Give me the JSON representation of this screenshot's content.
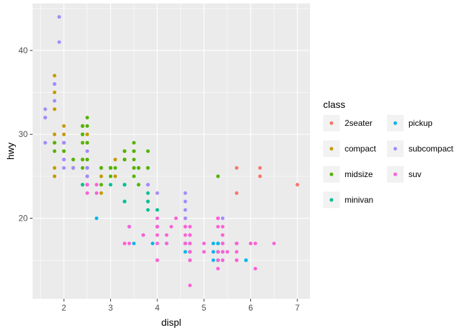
{
  "chart_data": {
    "type": "scatter",
    "xlabel": "displ",
    "ylabel": "hwy",
    "xlim": [
      1.33,
      7.27
    ],
    "ylim": [
      10.4,
      45.6
    ],
    "x_ticks": [
      2,
      3,
      4,
      5,
      6,
      7
    ],
    "y_ticks": [
      20,
      30,
      40
    ],
    "grid": true,
    "legend": {
      "title": "class",
      "placement": "right",
      "columns": 2
    },
    "series": [
      {
        "name": "2seater",
        "color": "#F8766D",
        "points": [
          [
            5.7,
            26
          ],
          [
            5.7,
            23
          ],
          [
            6.2,
            26
          ],
          [
            6.2,
            25
          ],
          [
            7.0,
            24
          ]
        ]
      },
      {
        "name": "compact",
        "color": "#C49A00",
        "points": [
          [
            1.8,
            29
          ],
          [
            1.8,
            29
          ],
          [
            2.0,
            31
          ],
          [
            2.0,
            30
          ],
          [
            2.8,
            26
          ],
          [
            2.8,
            26
          ],
          [
            3.1,
            27
          ],
          [
            1.8,
            26
          ],
          [
            1.8,
            25
          ],
          [
            2.0,
            28
          ],
          [
            2.0,
            29
          ],
          [
            2.8,
            25
          ],
          [
            3.1,
            25
          ],
          [
            1.8,
            37
          ],
          [
            1.8,
            35
          ],
          [
            1.8,
            33
          ],
          [
            1.8,
            30
          ],
          [
            2.2,
            27
          ],
          [
            2.2,
            26
          ],
          [
            2.4,
            31
          ],
          [
            2.4,
            30
          ],
          [
            3.0,
            26
          ],
          [
            3.3,
            27
          ],
          [
            2.0,
            29
          ],
          [
            2.0,
            28
          ],
          [
            2.5,
            26
          ],
          [
            2.8,
            23
          ],
          [
            2.8,
            26
          ],
          [
            2.4,
            27
          ],
          [
            2.4,
            31
          ],
          [
            2.5,
            29
          ],
          [
            2.5,
            30
          ],
          [
            2.5,
            27
          ]
        ]
      },
      {
        "name": "midsize",
        "color": "#53B400",
        "points": [
          [
            2.4,
            27
          ],
          [
            2.4,
            30
          ],
          [
            3.0,
            26
          ],
          [
            3.5,
            26
          ],
          [
            3.3,
            27
          ],
          [
            3.6,
            26
          ],
          [
            2.4,
            26
          ],
          [
            2.5,
            29
          ],
          [
            2.5,
            32
          ],
          [
            2.5,
            31
          ],
          [
            2.5,
            27
          ],
          [
            3.3,
            27
          ],
          [
            3.5,
            27
          ],
          [
            3.8,
            26
          ],
          [
            3.0,
            26
          ],
          [
            3.0,
            26
          ],
          [
            3.0,
            25
          ],
          [
            3.5,
            25
          ],
          [
            2.4,
            30
          ],
          [
            2.4,
            31
          ],
          [
            3.1,
            26
          ],
          [
            3.5,
            28
          ],
          [
            3.6,
            26
          ],
          [
            2.2,
            26
          ],
          [
            2.2,
            27
          ],
          [
            2.4,
            29
          ],
          [
            2.4,
            31
          ],
          [
            3.0,
            26
          ],
          [
            3.0,
            26
          ],
          [
            3.5,
            26
          ],
          [
            1.8,
            29
          ],
          [
            1.8,
            28
          ],
          [
            2.0,
            29
          ],
          [
            2.0,
            28
          ],
          [
            2.8,
            26
          ],
          [
            2.8,
            26
          ],
          [
            3.6,
            26
          ],
          [
            5.3,
            25
          ],
          [
            3.3,
            28
          ],
          [
            3.5,
            29
          ],
          [
            3.8,
            28
          ],
          [
            3.8,
            26
          ],
          [
            2.4,
            24
          ],
          [
            2.5,
            25
          ],
          [
            2.5,
            26
          ],
          [
            3.3,
            28
          ],
          [
            3.5,
            28
          ],
          [
            2.8,
            24
          ],
          [
            3.6,
            24
          ],
          [
            2.5,
            26
          ]
        ]
      },
      {
        "name": "minivan",
        "color": "#00C094",
        "points": [
          [
            2.4,
            24
          ],
          [
            3.0,
            24
          ],
          [
            3.3,
            22
          ],
          [
            3.3,
            22
          ],
          [
            3.3,
            24
          ],
          [
            3.3,
            24
          ],
          [
            3.3,
            24
          ],
          [
            3.8,
            22
          ],
          [
            3.8,
            21
          ],
          [
            3.8,
            22
          ],
          [
            4.0,
            21
          ],
          [
            3.8,
            23
          ]
        ]
      },
      {
        "name": "pickup",
        "color": "#00B6EB",
        "points": [
          [
            2.7,
            20
          ],
          [
            3.4,
            19
          ],
          [
            3.5,
            17
          ],
          [
            3.7,
            18
          ],
          [
            3.9,
            17
          ],
          [
            4.0,
            19
          ],
          [
            4.7,
            17
          ],
          [
            4.7,
            16
          ],
          [
            4.7,
            17
          ],
          [
            5.2,
            15
          ],
          [
            5.2,
            17
          ],
          [
            5.7,
            17
          ],
          [
            5.9,
            15
          ],
          [
            5.3,
            16
          ],
          [
            5.3,
            17
          ],
          [
            5.3,
            15
          ],
          [
            4.2,
            17
          ],
          [
            4.6,
            16
          ],
          [
            4.6,
            17
          ],
          [
            5.4,
            15
          ],
          [
            5.4,
            16
          ],
          [
            5.4,
            17
          ],
          [
            4.0,
            19
          ],
          [
            4.6,
            17
          ],
          [
            4.7,
            15
          ],
          [
            4.7,
            16
          ],
          [
            5.2,
            16
          ],
          [
            5.3,
            15
          ],
          [
            5.3,
            16
          ],
          [
            5.3,
            17
          ],
          [
            5.9,
            15
          ],
          [
            5.3,
            16
          ],
          [
            4.7,
            16
          ]
        ]
      },
      {
        "name": "subcompact",
        "color": "#A58AFF",
        "points": [
          [
            1.6,
            33
          ],
          [
            1.6,
            32
          ],
          [
            1.6,
            32
          ],
          [
            1.6,
            29
          ],
          [
            1.6,
            32
          ],
          [
            1.8,
            34
          ],
          [
            1.8,
            36
          ],
          [
            1.8,
            36
          ],
          [
            2.0,
            29
          ],
          [
            2.2,
            26
          ],
          [
            1.9,
            44
          ],
          [
            2.0,
            27
          ],
          [
            1.9,
            41
          ],
          [
            2.0,
            26
          ],
          [
            2.5,
            26
          ],
          [
            2.5,
            28
          ],
          [
            2.5,
            26
          ],
          [
            2.5,
            26
          ],
          [
            2.0,
            27
          ],
          [
            2.0,
            29
          ],
          [
            2.5,
            24
          ],
          [
            2.5,
            25
          ],
          [
            2.5,
            24
          ],
          [
            4.6,
            23
          ],
          [
            4.6,
            22
          ],
          [
            4.6,
            21
          ],
          [
            4.6,
            20
          ],
          [
            3.8,
            24
          ],
          [
            3.8,
            24
          ],
          [
            4.0,
            23
          ],
          [
            5.4,
            20
          ],
          [
            4.6,
            20
          ]
        ]
      },
      {
        "name": "suv",
        "color": "#FB61D7",
        "points": [
          [
            5.3,
            20
          ],
          [
            5.3,
            15
          ],
          [
            5.3,
            20
          ],
          [
            5.7,
            17
          ],
          [
            6.0,
            17
          ],
          [
            5.7,
            17
          ],
          [
            6.5,
            17
          ],
          [
            4.7,
            19
          ],
          [
            4.7,
            18
          ],
          [
            4.7,
            17
          ],
          [
            4.7,
            15
          ],
          [
            5.7,
            17
          ],
          [
            6.1,
            14
          ],
          [
            4.0,
            17
          ],
          [
            4.0,
            15
          ],
          [
            4.6,
            17
          ],
          [
            5.0,
            17
          ],
          [
            4.2,
            17
          ],
          [
            4.2,
            18
          ],
          [
            4.6,
            19
          ],
          [
            4.6,
            19
          ],
          [
            5.4,
            17
          ],
          [
            5.4,
            18
          ],
          [
            5.4,
            16
          ],
          [
            4.7,
            12
          ],
          [
            5.7,
            15
          ],
          [
            5.4,
            15
          ],
          [
            4.0,
            18
          ],
          [
            4.0,
            19
          ],
          [
            4.6,
            17
          ],
          [
            4.6,
            18
          ],
          [
            5.4,
            19
          ],
          [
            3.7,
            18
          ],
          [
            3.3,
            17
          ],
          [
            3.4,
            17
          ],
          [
            3.4,
            19
          ],
          [
            4.0,
            15
          ],
          [
            4.7,
            17
          ],
          [
            4.7,
            18
          ],
          [
            5.7,
            17
          ],
          [
            4.7,
            16
          ],
          [
            5.3,
            16
          ],
          [
            6.0,
            17
          ],
          [
            5.3,
            14
          ],
          [
            5.3,
            19
          ],
          [
            5.3,
            20
          ],
          [
            4.3,
            19
          ],
          [
            4.0,
            19
          ],
          [
            5.7,
            15
          ],
          [
            5.7,
            16
          ],
          [
            6.1,
            17
          ],
          [
            4.4,
            20
          ],
          [
            2.5,
            23
          ],
          [
            2.5,
            24
          ],
          [
            2.7,
            24
          ],
          [
            2.7,
            23
          ],
          [
            4.0,
            20
          ],
          [
            4.0,
            19
          ],
          [
            4.7,
            15
          ],
          [
            3.3,
            17
          ],
          [
            5.5,
            16
          ],
          [
            5.0,
            16
          ]
        ]
      }
    ]
  }
}
